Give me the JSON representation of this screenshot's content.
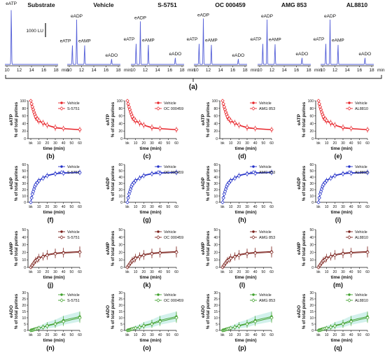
{
  "figure": {
    "top_panel_label": "(a)",
    "hplc_x_unit": "min",
    "scale_bar_label": "1000 LU",
    "hplc_ticks": [
      "10",
      "12",
      "14",
      "16",
      "18"
    ]
  },
  "chart_data": {
    "hplc": [
      {
        "title": "Substrate",
        "peaks": [
          {
            "name": "eATP",
            "t": 10.7,
            "h": 1.0
          }
        ]
      },
      {
        "title": "Vehicle",
        "peaks": [
          {
            "name": "eATP",
            "t": 10.5,
            "h": 0.35
          },
          {
            "name": "eADP",
            "t": 11.2,
            "h": 0.78
          },
          {
            "name": "eAMP",
            "t": 12.5,
            "h": 0.35
          },
          {
            "name": "eADO",
            "t": 16.9,
            "h": 0.1
          }
        ]
      },
      {
        "title": "S-5751",
        "peaks": [
          {
            "name": "eATP",
            "t": 10.5,
            "h": 0.38
          },
          {
            "name": "eADP",
            "t": 11.2,
            "h": 0.75
          },
          {
            "name": "eAMP",
            "t": 12.5,
            "h": 0.36
          },
          {
            "name": "eADO",
            "t": 16.9,
            "h": 0.12
          }
        ]
      },
      {
        "title": "OC 000459",
        "peaks": [
          {
            "name": "eATP",
            "t": 10.5,
            "h": 0.38
          },
          {
            "name": "eADP",
            "t": 11.2,
            "h": 0.8
          },
          {
            "name": "eAMP",
            "t": 12.5,
            "h": 0.36
          },
          {
            "name": "eADO",
            "t": 16.9,
            "h": 0.1
          }
        ]
      },
      {
        "title": "AMG 853",
        "peaks": [
          {
            "name": "eATP",
            "t": 10.5,
            "h": 0.38
          },
          {
            "name": "eADP",
            "t": 11.2,
            "h": 0.78
          },
          {
            "name": "eAMP",
            "t": 12.5,
            "h": 0.37
          },
          {
            "name": "eADO",
            "t": 16.9,
            "h": 0.12
          }
        ]
      },
      {
        "title": "AL8810",
        "peaks": [
          {
            "name": "eATP",
            "t": 10.5,
            "h": 0.38
          },
          {
            "name": "eADP",
            "t": 11.2,
            "h": 0.78
          },
          {
            "name": "eAMP",
            "t": 12.5,
            "h": 0.36
          },
          {
            "name": "eADO",
            "t": 16.9,
            "h": 0.12
          }
        ]
      }
    ],
    "rows": [
      {
        "ylabel": "eATP",
        "ylabel2": "% of total purines",
        "ylim": [
          0,
          100
        ],
        "yticks": [
          0,
          20,
          40,
          60,
          80,
          100
        ],
        "color": "#e8242a",
        "vehicle": [
          100,
          90,
          82,
          75,
          68,
          62,
          55,
          50,
          46,
          40,
          35,
          28,
          26,
          23
        ],
        "treated": [
          100,
          92,
          84,
          77,
          70,
          64,
          58,
          52,
          48,
          42,
          36,
          30,
          27,
          24
        ],
        "err": [
          0,
          3,
          5,
          6,
          7,
          7,
          8,
          8,
          8,
          8,
          8,
          8,
          7,
          7
        ]
      },
      {
        "ylabel": "eADP",
        "ylabel2": "% of total purines",
        "ylim": [
          0,
          60
        ],
        "yticks": [
          0,
          10,
          20,
          30,
          40,
          50,
          60
        ],
        "color": "#2330c8",
        "vehicle": [
          0,
          8,
          14,
          18,
          22,
          26,
          29,
          32,
          35,
          39,
          43,
          46,
          47,
          48
        ],
        "treated": [
          0,
          7,
          13,
          17,
          21,
          25,
          28,
          31,
          34,
          38,
          42,
          45,
          46,
          47
        ],
        "err": [
          0,
          2,
          3,
          3,
          3,
          4,
          4,
          4,
          4,
          4,
          4,
          4,
          4,
          4
        ]
      },
      {
        "ylabel": "eAMP",
        "ylabel2": "% of total purines",
        "ylim": [
          0,
          50
        ],
        "yticks": [
          0,
          10,
          20,
          30,
          40,
          50
        ],
        "color": "#7a1f1a",
        "vehicle": [
          0,
          2,
          4,
          5,
          7,
          8,
          10,
          11,
          13,
          15,
          17,
          19,
          20,
          21
        ],
        "treated": [
          0,
          2,
          3,
          5,
          6,
          8,
          9,
          10,
          12,
          14,
          16,
          18,
          19,
          20
        ],
        "err": [
          0,
          1,
          2,
          2,
          3,
          3,
          4,
          4,
          5,
          5,
          6,
          6,
          6,
          7
        ]
      },
      {
        "ylabel": "eADO",
        "ylabel2": "% of total purines",
        "ylim": [
          0,
          30
        ],
        "yticks": [
          0,
          5,
          10,
          15,
          20,
          25,
          30
        ],
        "color": "#3fa02b",
        "vehicle": [
          0,
          0.2,
          0.4,
          0.6,
          0.8,
          1,
          1.3,
          1.6,
          2,
          2.8,
          4,
          5.5,
          8,
          11
        ],
        "treated": [
          0,
          0.2,
          0.3,
          0.5,
          0.7,
          0.9,
          1.2,
          1.5,
          1.8,
          2.5,
          3.5,
          5,
          7,
          10
        ],
        "err": [
          0,
          0.3,
          0.5,
          0.6,
          0.8,
          1,
          1.2,
          1.4,
          1.6,
          2,
          2.5,
          3,
          3.5,
          4
        ]
      }
    ],
    "times": [
      0,
      1,
      2,
      3,
      4,
      5,
      6,
      8,
      10,
      15,
      20,
      30,
      40,
      60
    ],
    "xlabel": "time (min)",
    "xticks": [
      "bk",
      "10",
      "20",
      "30",
      "40",
      "50",
      "60"
    ],
    "legend_vehicle": "Vehicle",
    "drugs": [
      "S-5751",
      "OC 000459",
      "AMG 853",
      "AL8810"
    ],
    "panel_labels": [
      [
        "(b)",
        "(c)",
        "(d)",
        "(e)"
      ],
      [
        "(f)",
        "(g)",
        "(h)",
        "(i)"
      ],
      [
        "(j)",
        "(k)",
        "(l)",
        "(m)"
      ],
      [
        "(n)",
        "(o)",
        "(p)",
        "(q)"
      ]
    ]
  }
}
